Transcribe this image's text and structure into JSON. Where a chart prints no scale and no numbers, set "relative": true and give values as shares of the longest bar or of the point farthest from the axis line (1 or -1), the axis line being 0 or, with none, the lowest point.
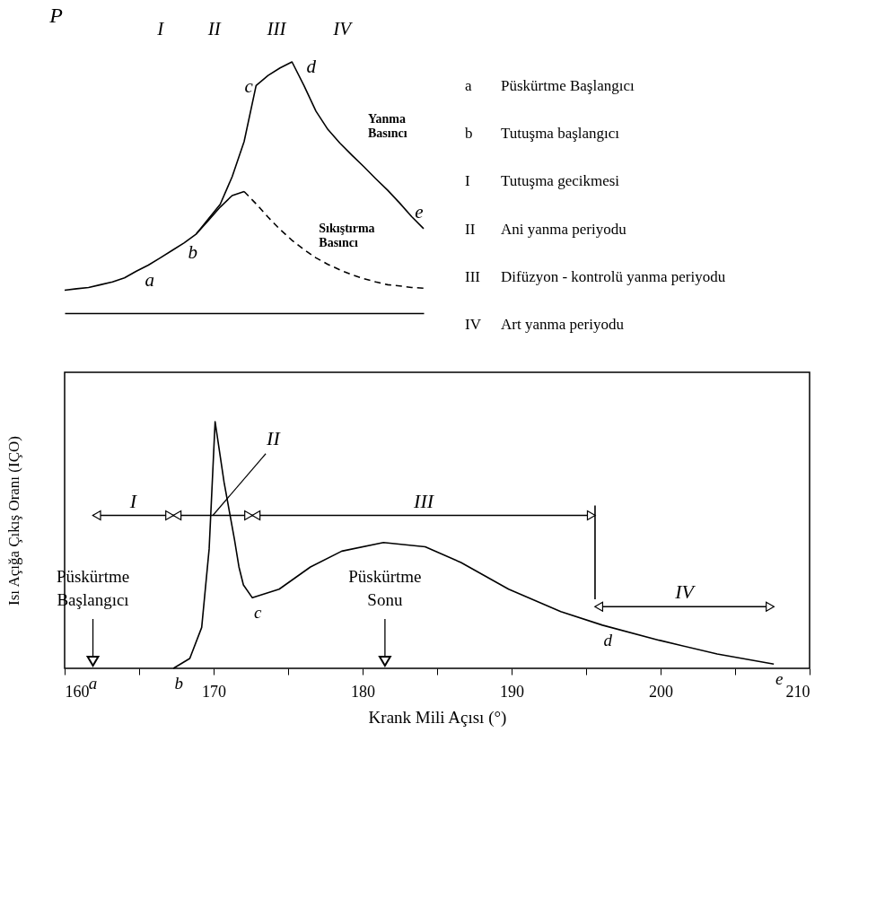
{
  "chart_data": [
    {
      "type": "line",
      "relative": true,
      "ylabel": "P",
      "tick_labels": false,
      "grid": false,
      "marker": "none",
      "categories": [
        null,
        null,
        null,
        null,
        null,
        null,
        null,
        null,
        null,
        null,
        null,
        null,
        null,
        null,
        null,
        null,
        null,
        null,
        null,
        null,
        null,
        null,
        null,
        null,
        null,
        null,
        null,
        null,
        null,
        null,
        null
      ],
      "series": [
        {
          "name": "Yanma Basıncı",
          "color": "#000000",
          "line_style": "solid",
          "values": [
            0.091,
            0.097,
            0.102,
            0.113,
            0.124,
            0.14,
            0.167,
            0.191,
            0.22,
            0.25,
            0.28,
            0.315,
            0.374,
            0.433,
            0.543,
            0.683,
            0.906,
            0.946,
            0.976,
            1,
            0.906,
            0.804,
            0.731,
            0.677,
            0.629,
            0.583,
            0.535,
            0.489,
            0.438,
            0.384,
            0.336
          ]
        },
        {
          "color": "#000000",
          "line_style": "solid",
          "values": [
            null,
            null,
            null,
            null,
            null,
            null,
            null,
            null,
            null,
            null,
            null,
            0.315,
            0.368,
            0.422,
            0.468,
            0.484,
            null,
            null,
            null,
            null,
            null,
            null,
            null,
            null,
            null,
            null,
            null,
            null,
            null,
            null,
            null
          ]
        },
        {
          "name": "Sıkıştırma Basıncı",
          "color": "#000000",
          "line_style": "dashed",
          "values": [
            null,
            null,
            null,
            null,
            null,
            null,
            null,
            null,
            null,
            null,
            null,
            null,
            null,
            null,
            null,
            0.484,
            0.435,
            0.382,
            0.333,
            0.29,
            0.253,
            0.22,
            0.194,
            0.172,
            0.153,
            0.137,
            0.124,
            0.113,
            0.108,
            0.102,
            0.099
          ]
        }
      ],
      "annotations": [
        "a",
        "b",
        "c",
        "d",
        "e",
        "I",
        "II",
        "III",
        "IV"
      ]
    },
    {
      "type": "other",
      "annotations": [
        "a Püskürtme Başlangıcı",
        "b Tutuşma başlangıcı",
        "I Tutuşma gecikmesi",
        "II Ani yanma periyodu",
        "III Difüzyon - kontrolü yanma periyodu",
        "IV Art yanma periyodu"
      ]
    },
    {
      "type": "line",
      "relative": true,
      "color": "#000000",
      "line_style": "solid",
      "grid": false,
      "tick_labels": "x",
      "marker": "none",
      "xlabel": "Krank Mili Açısı (°)",
      "ylabel": "Isı Açığa Çıkış Oranı (IÇO)",
      "x": [
        167.3,
        168.4,
        169.2,
        169.7,
        170.1,
        170.7,
        171.4,
        171.7,
        172.0,
        172.6,
        174.4,
        176.5,
        178.6,
        181.4,
        184.2,
        186.6,
        189.8,
        193.3,
        196.1,
        199.9,
        203.8,
        207.6
      ],
      "values": [
        0,
        0.04,
        0.166,
        0.484,
        1,
        0.755,
        0.522,
        0.411,
        0.338,
        0.286,
        0.321,
        0.411,
        0.475,
        0.51,
        0.493,
        0.429,
        0.321,
        0.23,
        0.175,
        0.114,
        0.058,
        0.017
      ],
      "xlim": [
        160,
        210
      ],
      "xticks": [
        160,
        {
          "value": 165,
          "label": null
        },
        170,
        {
          "value": 175,
          "label": null
        },
        180,
        {
          "value": 185,
          "label": null
        },
        190,
        {
          "value": 195,
          "label": null
        },
        200,
        {
          "value": 205,
          "label": null
        },
        210
      ],
      "ref_lines": [
        {
          "axis": "x",
          "value": 195.6
        }
      ],
      "annotations": [
        "Püskürtme Başlangıcı",
        "Püskürtme Sonu",
        "a",
        "I",
        "II",
        "III",
        "IV",
        {
          "text": "b",
          "x": 167.3,
          "y": 0
        },
        {
          "text": "c",
          "x": 172.6,
          "y": 0.286
        },
        {
          "text": "d",
          "x": 196.1,
          "y": 0.175
        },
        {
          "text": "e",
          "x": 207.6,
          "y": 0.017
        }
      ]
    }
  ]
}
